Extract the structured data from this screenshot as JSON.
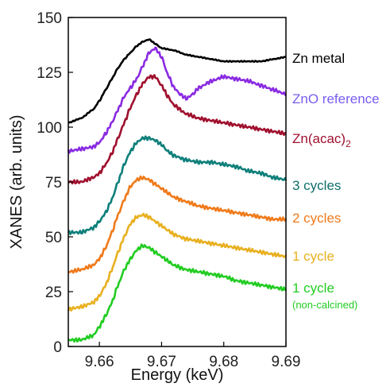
{
  "chart_data": {
    "type": "line",
    "xlabel": "Energy (keV)",
    "ylabel": "XANES (arb. units)",
    "xlim": [
      9.655,
      9.69
    ],
    "ylim": [
      0,
      150
    ],
    "x_ticks": [
      "9.66",
      "9.67",
      "9.68",
      "9.69"
    ],
    "x_tick_values": [
      9.66,
      9.67,
      9.68,
      9.69
    ],
    "y_ticks": [
      "0",
      "25",
      "50",
      "75",
      "100",
      "125",
      "150"
    ],
    "y_tick_values": [
      0,
      25,
      50,
      75,
      100,
      125,
      150
    ],
    "grid": false,
    "legend": "inline labels at right end of each curve",
    "series": [
      {
        "name": "Zn metal",
        "color": "#000000",
        "x": [
          9.655,
          9.657,
          9.659,
          9.66,
          9.661,
          9.662,
          9.663,
          9.664,
          9.665,
          9.666,
          9.667,
          9.668,
          9.669,
          9.67,
          9.672,
          9.674,
          9.676,
          9.678,
          9.68,
          9.682,
          9.684,
          9.686,
          9.688,
          9.69
        ],
        "values": [
          102,
          104,
          108,
          112,
          117,
          122,
          127,
          131,
          134,
          137,
          139,
          140,
          138,
          136,
          135,
          133,
          132,
          131,
          130,
          130,
          130,
          130,
          131,
          132
        ]
      },
      {
        "name": "ZnO reference",
        "color": "#8a2be2",
        "x": [
          9.655,
          9.657,
          9.659,
          9.66,
          9.661,
          9.662,
          9.663,
          9.664,
          9.665,
          9.666,
          9.667,
          9.668,
          9.669,
          9.67,
          9.671,
          9.672,
          9.673,
          9.674,
          9.675,
          9.676,
          9.678,
          9.68,
          9.682,
          9.684,
          9.686,
          9.688,
          9.69
        ],
        "values": [
          89,
          90,
          91,
          93,
          97,
          102,
          108,
          114,
          118,
          122,
          128,
          134,
          136,
          132,
          124,
          118,
          115,
          113,
          115,
          118,
          121,
          123,
          122,
          121,
          119,
          117,
          115
        ]
      },
      {
        "name": "Zn(acac)2",
        "color": "#a0102e",
        "x": [
          9.655,
          9.657,
          9.659,
          9.66,
          9.661,
          9.662,
          9.663,
          9.664,
          9.665,
          9.666,
          9.667,
          9.668,
          9.669,
          9.67,
          9.671,
          9.672,
          9.674,
          9.676,
          9.678,
          9.68,
          9.682,
          9.684,
          9.686,
          9.688,
          9.69
        ],
        "values": [
          75,
          75,
          77,
          79,
          83,
          88,
          95,
          102,
          109,
          115,
          120,
          123,
          123,
          119,
          114,
          110,
          106,
          104,
          103,
          102,
          101,
          100,
          99,
          98,
          97
        ]
      },
      {
        "name": "3 cycles",
        "color": "#0e7f7a",
        "x": [
          9.655,
          9.657,
          9.659,
          9.66,
          9.661,
          9.662,
          9.663,
          9.664,
          9.665,
          9.666,
          9.667,
          9.668,
          9.669,
          9.67,
          9.671,
          9.672,
          9.674,
          9.676,
          9.678,
          9.68,
          9.682,
          9.684,
          9.686,
          9.688,
          9.69
        ],
        "values": [
          52,
          52,
          54,
          57,
          61,
          67,
          75,
          83,
          89,
          93,
          95,
          95,
          94,
          92,
          89,
          87,
          85,
          84,
          84,
          83,
          82,
          80,
          79,
          77,
          76
        ]
      },
      {
        "name": "2 cycles",
        "color": "#f07a1a",
        "x": [
          9.655,
          9.657,
          9.659,
          9.66,
          9.661,
          9.662,
          9.663,
          9.664,
          9.665,
          9.666,
          9.667,
          9.668,
          9.669,
          9.67,
          9.671,
          9.672,
          9.674,
          9.676,
          9.678,
          9.68,
          9.682,
          9.684,
          9.686,
          9.688,
          9.69
        ],
        "values": [
          34,
          35,
          37,
          40,
          45,
          52,
          60,
          67,
          73,
          76,
          77,
          76,
          74,
          72,
          70,
          68,
          66,
          64,
          63,
          62,
          61,
          60,
          59,
          58,
          58
        ]
      },
      {
        "name": "1 cycle",
        "color": "#e8b020",
        "x": [
          9.655,
          9.657,
          9.659,
          9.66,
          9.661,
          9.662,
          9.663,
          9.664,
          9.665,
          9.666,
          9.667,
          9.668,
          9.669,
          9.67,
          9.671,
          9.672,
          9.674,
          9.676,
          9.678,
          9.68,
          9.682,
          9.684,
          9.686,
          9.688,
          9.69
        ],
        "values": [
          17,
          18,
          20,
          23,
          28,
          35,
          43,
          50,
          56,
          59,
          60,
          59,
          57,
          55,
          53,
          51,
          49,
          48,
          47,
          46,
          45,
          44,
          43,
          42,
          41
        ]
      },
      {
        "name": "1 cycle (non-calcined)",
        "color": "#22cc22",
        "x": [
          9.655,
          9.657,
          9.659,
          9.66,
          9.661,
          9.662,
          9.663,
          9.664,
          9.665,
          9.666,
          9.667,
          9.668,
          9.669,
          9.67,
          9.671,
          9.672,
          9.674,
          9.676,
          9.678,
          9.68,
          9.682,
          9.684,
          9.686,
          9.688,
          9.69
        ],
        "values": [
          3,
          3,
          5,
          9,
          14,
          20,
          28,
          35,
          40,
          44,
          46,
          45,
          43,
          41,
          39,
          37,
          35,
          34,
          33,
          32,
          30,
          29,
          28,
          27,
          26
        ]
      }
    ],
    "labels": [
      {
        "text": "Zn metal",
        "color": "#000000",
        "series": 0
      },
      {
        "text": "ZnO reference",
        "color": "#7a5cf0",
        "series": 1
      },
      {
        "text": "Zn(acac)",
        "subscript": "2",
        "color": "#a0102e",
        "series": 2
      },
      {
        "text": "3 cycles",
        "color": "#0e6e6a",
        "series": 3
      },
      {
        "text": "2 cycles",
        "color": "#f07a1a",
        "series": 4
      },
      {
        "text": "1 cycle",
        "color": "#e8b020",
        "series": 5
      },
      {
        "text": "1 cycle",
        "sublabel": "(non-calcined)",
        "color": "#22cc22",
        "series": 6
      }
    ]
  }
}
